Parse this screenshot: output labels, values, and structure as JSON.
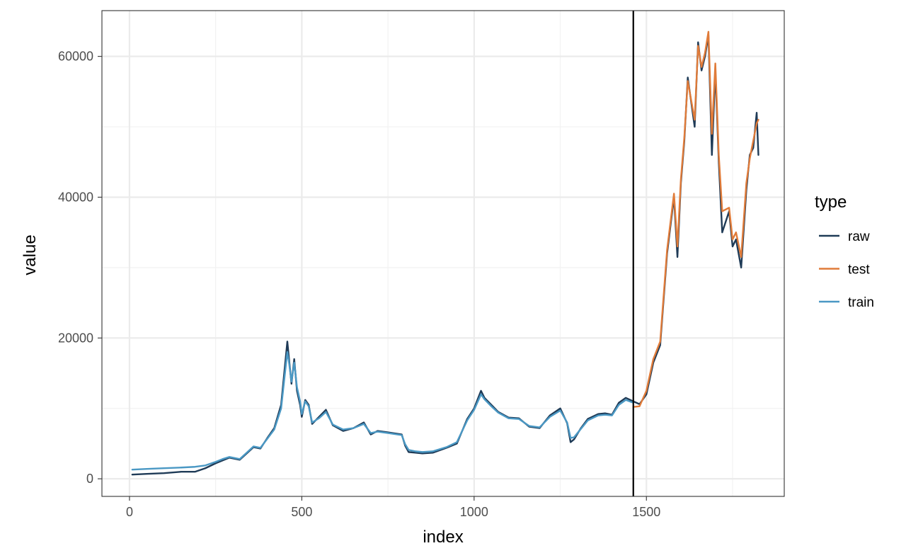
{
  "chart_data": {
    "type": "line",
    "xlabel": "index",
    "ylabel": "value",
    "xlim": [
      -80,
      1900
    ],
    "ylim": [
      -2500,
      66500
    ],
    "x_ticks": [
      0,
      500,
      1000,
      1500
    ],
    "x_tick_labels": [
      "0",
      "500",
      "1000",
      "1500"
    ],
    "y_ticks": [
      0,
      20000,
      40000,
      60000
    ],
    "y_tick_labels": [
      "0",
      "20000",
      "40000",
      "60000"
    ],
    "x_minor_gridlines": [
      250,
      750,
      1250,
      1750
    ],
    "y_minor_gridlines": [
      10000,
      30000,
      50000
    ],
    "grid": true,
    "split_index": 1462,
    "legend": {
      "title": "type",
      "placement": "right",
      "entries": [
        "raw",
        "test",
        "train"
      ]
    },
    "series": [
      {
        "name": "raw",
        "color": "#1f3b57",
        "x": [
          8,
          50,
          100,
          150,
          190,
          220,
          250,
          270,
          290,
          320,
          340,
          360,
          380,
          400,
          420,
          440,
          450,
          458,
          463,
          470,
          478,
          486,
          495,
          500,
          510,
          520,
          530,
          550,
          570,
          590,
          620,
          650,
          680,
          700,
          720,
          750,
          790,
          800,
          810,
          830,
          850,
          880,
          920,
          950,
          980,
          1000,
          1020,
          1030,
          1050,
          1070,
          1100,
          1130,
          1160,
          1190,
          1220,
          1250,
          1270,
          1280,
          1290,
          1310,
          1330,
          1360,
          1380,
          1400,
          1420,
          1440,
          1462,
          1480,
          1500,
          1520,
          1540,
          1560,
          1580,
          1590,
          1600,
          1610,
          1620,
          1640,
          1650,
          1660,
          1670,
          1680,
          1690,
          1700,
          1710,
          1720,
          1740,
          1750,
          1760,
          1775,
          1790,
          1800,
          1810,
          1820,
          1825
        ],
        "y": [
          600,
          700,
          800,
          1000,
          1000,
          1500,
          2200,
          2600,
          3000,
          2700,
          3600,
          4500,
          4300,
          5800,
          7200,
          10500,
          15500,
          19500,
          17000,
          13500,
          17000,
          12500,
          10500,
          8800,
          11200,
          10500,
          7800,
          8800,
          9800,
          7600,
          6800,
          7200,
          8000,
          6300,
          6800,
          6600,
          6300,
          4700,
          3800,
          3700,
          3600,
          3700,
          4400,
          5000,
          8500,
          10000,
          12500,
          11500,
          10500,
          9500,
          8700,
          8600,
          7400,
          7200,
          9000,
          10000,
          7900,
          5200,
          5600,
          7200,
          8500,
          9200,
          9300,
          9100,
          10800,
          11500,
          11000,
          10600,
          12000,
          16500,
          19000,
          32000,
          40000,
          31500,
          42000,
          48000,
          57000,
          50000,
          62000,
          58000,
          60000,
          63000,
          46000,
          58000,
          45000,
          35000,
          38000,
          33000,
          34000,
          30000,
          41000,
          46000,
          47000,
          52000,
          46000
        ]
      },
      {
        "name": "test",
        "color": "#e07b39",
        "x": [
          1462,
          1480,
          1500,
          1520,
          1540,
          1560,
          1580,
          1590,
          1600,
          1610,
          1620,
          1640,
          1650,
          1660,
          1670,
          1680,
          1690,
          1700,
          1710,
          1720,
          1740,
          1750,
          1760,
          1775,
          1790,
          1800,
          1810,
          1820,
          1825
        ],
        "y": [
          10200,
          10300,
          12500,
          17000,
          19500,
          32500,
          40500,
          33000,
          42500,
          48500,
          56500,
          51000,
          61500,
          58500,
          60500,
          63500,
          49000,
          59000,
          46000,
          38000,
          38500,
          34000,
          35000,
          31500,
          42000,
          45500,
          48000,
          50500,
          51000
        ]
      },
      {
        "name": "train",
        "color": "#4a98c4",
        "x": [
          8,
          50,
          100,
          150,
          190,
          220,
          250,
          270,
          290,
          320,
          340,
          360,
          380,
          400,
          420,
          440,
          450,
          458,
          463,
          470,
          478,
          486,
          495,
          500,
          510,
          520,
          530,
          550,
          570,
          590,
          620,
          650,
          680,
          700,
          720,
          750,
          790,
          800,
          810,
          830,
          850,
          880,
          920,
          950,
          980,
          1000,
          1020,
          1030,
          1050,
          1070,
          1100,
          1130,
          1160,
          1190,
          1220,
          1250,
          1270,
          1280,
          1290,
          1310,
          1330,
          1360,
          1380,
          1400,
          1420,
          1440,
          1462
        ],
        "y": [
          1300,
          1400,
          1500,
          1600,
          1700,
          1900,
          2400,
          2800,
          3100,
          2800,
          3700,
          4600,
          4400,
          5700,
          7000,
          10000,
          14500,
          18000,
          16500,
          13800,
          16500,
          13000,
          11000,
          9200,
          11000,
          10300,
          8000,
          8600,
          9500,
          7700,
          7000,
          7200,
          7800,
          6500,
          6700,
          6500,
          6200,
          4900,
          4100,
          3900,
          3800,
          3900,
          4500,
          5200,
          8300,
          9800,
          12000,
          11300,
          10300,
          9400,
          8600,
          8500,
          7500,
          7300,
          8800,
          9700,
          8000,
          5800,
          5900,
          7100,
          8300,
          9000,
          9100,
          9000,
          10500,
          11200,
          10800
        ]
      }
    ]
  }
}
